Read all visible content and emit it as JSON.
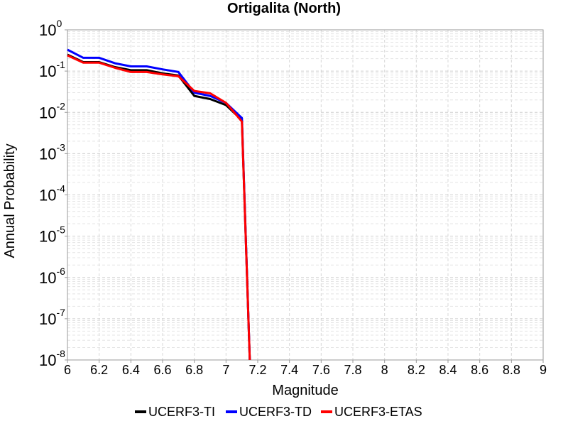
{
  "chart_data": {
    "type": "line",
    "title": "Ortigalita (North)",
    "xlabel": "Magnitude",
    "ylabel": "Annual Probability",
    "xlim": [
      6,
      9
    ],
    "ylim": [
      1e-08,
      1
    ],
    "y_scale": "log",
    "grid": true,
    "legend_position": "bottom",
    "x_ticks": [
      "6",
      "6.2",
      "6.4",
      "6.6",
      "6.8",
      "7",
      "7.2",
      "7.4",
      "7.6",
      "7.8",
      "8",
      "8.2",
      "8.4",
      "8.6",
      "8.8",
      "9"
    ],
    "y_ticks": [
      {
        "base": "10",
        "exp": "-8"
      },
      {
        "base": "10",
        "exp": "-7"
      },
      {
        "base": "10",
        "exp": "-6"
      },
      {
        "base": "10",
        "exp": "-5"
      },
      {
        "base": "10",
        "exp": "-4"
      },
      {
        "base": "10",
        "exp": "-3"
      },
      {
        "base": "10",
        "exp": "-2"
      },
      {
        "base": "10",
        "exp": "-1"
      },
      {
        "base": "10",
        "exp": "0"
      }
    ],
    "series": [
      {
        "name": "UCERF3-TI",
        "color": "#000000",
        "x": [
          6.0,
          6.1,
          6.2,
          6.3,
          6.4,
          6.5,
          6.6,
          6.7,
          6.8,
          6.9,
          7.0,
          7.1,
          7.15
        ],
        "y": [
          0.25,
          0.165,
          0.165,
          0.125,
          0.105,
          0.105,
          0.088,
          0.078,
          0.025,
          0.021,
          0.015,
          0.0065,
          1e-08
        ]
      },
      {
        "name": "UCERF3-TD",
        "color": "#0000ff",
        "x": [
          6.0,
          6.1,
          6.2,
          6.3,
          6.4,
          6.5,
          6.6,
          6.7,
          6.8,
          6.9,
          7.0,
          7.1,
          7.15
        ],
        "y": [
          0.33,
          0.21,
          0.21,
          0.155,
          0.13,
          0.13,
          0.11,
          0.095,
          0.03,
          0.025,
          0.017,
          0.0073,
          1e-08
        ]
      },
      {
        "name": "UCERF3-ETAS",
        "color": "#ff0000",
        "x": [
          6.0,
          6.1,
          6.2,
          6.3,
          6.4,
          6.5,
          6.6,
          6.7,
          6.8,
          6.9,
          7.0,
          7.1,
          7.15
        ],
        "y": [
          0.24,
          0.16,
          0.16,
          0.12,
          0.095,
          0.095,
          0.083,
          0.075,
          0.033,
          0.029,
          0.017,
          0.006,
          1e-08
        ]
      }
    ]
  }
}
